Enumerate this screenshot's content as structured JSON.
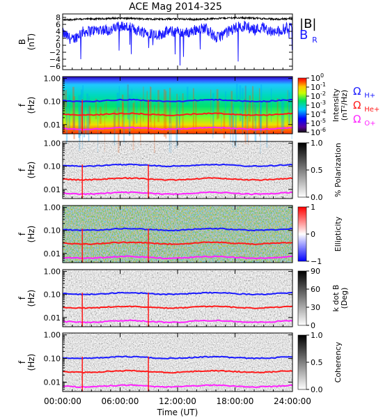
{
  "title": "ACE Mag 2014-325",
  "colors": {
    "B_total": "#000000",
    "B_R": "#1a1aff",
    "H_plus": "#1a1aff",
    "He_plus": "#ff1a1a",
    "O_plus": "#ff22ff"
  },
  "chart_data": [
    {
      "type": "line",
      "panel": "magnetic-field",
      "ylabel_main": "B",
      "ylabel_unit": "(nT)",
      "ylim": [
        -7,
        9
      ],
      "y_ticks": [
        8,
        6,
        4,
        2,
        0,
        -2,
        -4,
        -6
      ],
      "series": [
        {
          "name": "|B|",
          "key": "B_total",
          "approx_mean": 7.6,
          "x_hours": [
            0,
            2,
            4,
            6,
            8,
            10,
            12,
            14,
            16,
            18,
            20,
            22,
            24
          ],
          "values": [
            7.3,
            7.5,
            7.6,
            7.8,
            7.6,
            7.5,
            7.6,
            7.4,
            7.7,
            7.9,
            7.8,
            7.5,
            7.6
          ]
        },
        {
          "name": "BR",
          "name_main": "B",
          "name_sub": "R",
          "key": "B_R",
          "x_hours": [
            0,
            1,
            2,
            3,
            4,
            5,
            6,
            7,
            8,
            9,
            10,
            11,
            12,
            13,
            14,
            15,
            16,
            17,
            18,
            19,
            20,
            21,
            22,
            23,
            24
          ],
          "values": [
            3.5,
            1.5,
            3.8,
            4.2,
            4.6,
            4.3,
            5.6,
            5.0,
            4.2,
            3.6,
            3.0,
            4.0,
            3.8,
            3.5,
            4.6,
            5.0,
            2.0,
            3.5,
            5.0,
            5.6,
            4.5,
            5.2,
            3.5,
            4.5,
            5.5
          ]
        }
      ]
    },
    {
      "type": "heatmap",
      "panel": "intensity",
      "ylabel_main": "f",
      "ylabel_unit": "(Hz)",
      "y_ticks": [
        "1.00",
        "0.10",
        "0.01"
      ],
      "colorbar_label": "Intensity",
      "colorbar_unit": "(nT²/Hz)",
      "colorbar_ticks": [
        {
          "base": "10",
          "exp": "0"
        },
        {
          "base": "10",
          "exp": "-1"
        },
        {
          "base": "10",
          "exp": "-2"
        },
        {
          "base": "10",
          "exp": "-3"
        },
        {
          "base": "10",
          "exp": "-4"
        },
        {
          "base": "10",
          "exp": "-5"
        },
        {
          "base": "10",
          "exp": "-6"
        }
      ],
      "legend": [
        {
          "main": "Ω",
          "sub": "H+",
          "key": "H_plus"
        },
        {
          "main": "Ω",
          "sub": "He+",
          "key": "He_plus"
        },
        {
          "main": "Ω",
          "sub": "O+",
          "key": "O_plus"
        }
      ]
    },
    {
      "type": "heatmap",
      "panel": "polarization",
      "ylabel_main": "f",
      "ylabel_unit": "(Hz)",
      "y_ticks": [
        "1.00",
        "0.10",
        "0.01"
      ],
      "colorbar_label": "% Polarization",
      "colorbar_ticks": [
        "1.0",
        "0.5",
        "0.0"
      ]
    },
    {
      "type": "heatmap",
      "panel": "ellipticity",
      "ylabel_main": "f",
      "ylabel_unit": "(Hz)",
      "y_ticks": [
        "1.00",
        "0.10",
        "0.01"
      ],
      "colorbar_label": "Ellipticity",
      "colorbar_ticks": [
        "1",
        "0",
        "−1"
      ]
    },
    {
      "type": "heatmap",
      "panel": "k-dot-b",
      "ylabel_main": "f",
      "ylabel_unit": "(Hz)",
      "y_ticks": [
        "1.00",
        "0.10",
        "0.01"
      ],
      "colorbar_label": "k dot B",
      "colorbar_unit": "(Deg)",
      "colorbar_ticks": [
        "90",
        "60",
        "30",
        "0"
      ]
    },
    {
      "type": "heatmap",
      "panel": "coherency",
      "ylabel_main": "f",
      "ylabel_unit": "(Hz)",
      "y_ticks": [
        "1.00",
        "0.10",
        "0.01"
      ],
      "colorbar_label": "Coherency",
      "colorbar_ticks": [
        "1.0",
        "0.5",
        "0.0"
      ]
    }
  ],
  "gyrofrequency_lines_hz": {
    "H_plus": 0.11,
    "He_plus": 0.028,
    "O_plus": 0.0068
  },
  "x_axis": {
    "label": "Time (UT)",
    "ticks": [
      "00:00:00",
      "06:00:00",
      "12:00:00",
      "18:00:00",
      "24:00:00"
    ],
    "range_hours": [
      0,
      24
    ]
  }
}
